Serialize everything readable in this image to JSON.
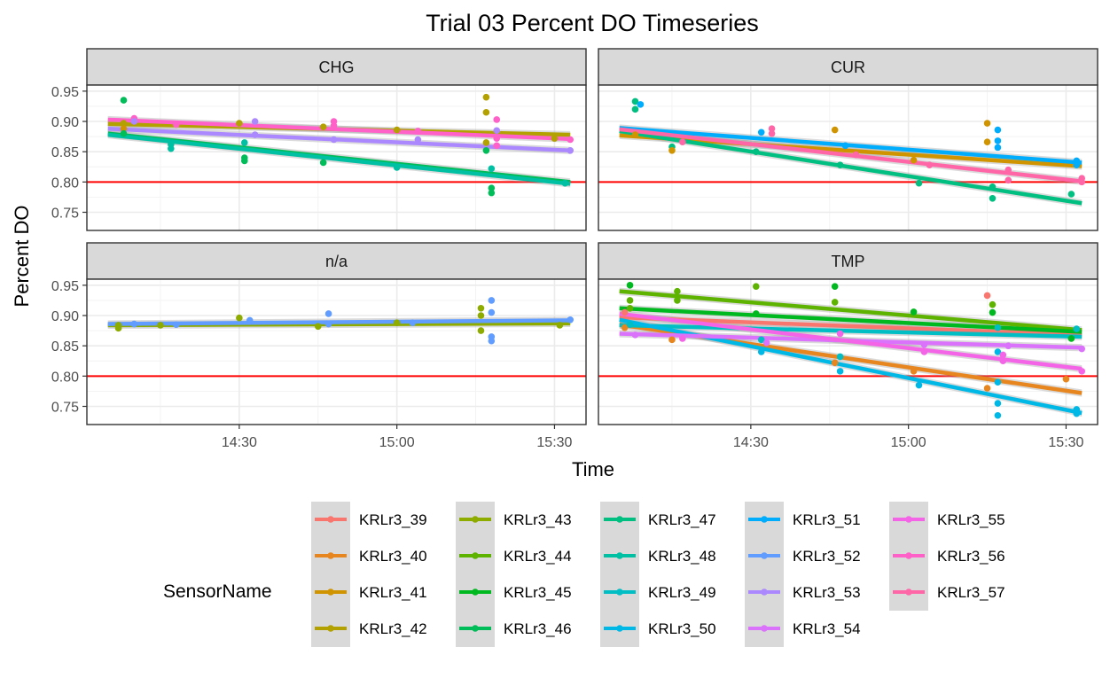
{
  "colors": {
    "reference_line": "#ff0000",
    "ribbon": "#999999",
    "strip_fill": "#d9d9d9"
  },
  "chart_data": {
    "type": "scatter",
    "title": "Trial 03 Percent DO Timeseries",
    "xlabel": "Time",
    "ylabel": "Percent DO",
    "x_ticks": [
      "14:30",
      "15:00",
      "15:30"
    ],
    "x_range": [
      "14:01",
      "15:36"
    ],
    "y_ticks": [
      "0.75",
      "0.80",
      "0.85",
      "0.90",
      "0.95"
    ],
    "ylim": [
      0.72,
      0.96
    ],
    "reference_line_y": 0.8,
    "grid": true,
    "legend_title": "SensorName",
    "legend_position": "bottom",
    "smoother": "linear fit with confidence ribbon",
    "series": [
      {
        "name": "KRLr3_39",
        "color": "#F8766D"
      },
      {
        "name": "KRLr3_40",
        "color": "#E7851E"
      },
      {
        "name": "KRLr3_41",
        "color": "#D09400"
      },
      {
        "name": "KRLr3_42",
        "color": "#B2A100"
      },
      {
        "name": "KRLr3_43",
        "color": "#8EAB00"
      },
      {
        "name": "KRLr3_44",
        "color": "#5EB300"
      },
      {
        "name": "KRLr3_45",
        "color": "#00B81F"
      },
      {
        "name": "KRLr3_46",
        "color": "#00BC59"
      },
      {
        "name": "KRLr3_47",
        "color": "#00BF80"
      },
      {
        "name": "KRLr3_48",
        "color": "#00C0A3"
      },
      {
        "name": "KRLr3_49",
        "color": "#00BEC4"
      },
      {
        "name": "KRLr3_50",
        "color": "#00B8E5"
      },
      {
        "name": "KRLr3_51",
        "color": "#00ACFC"
      },
      {
        "name": "KRLr3_52",
        "color": "#619CFF"
      },
      {
        "name": "KRLr3_53",
        "color": "#AC88FF"
      },
      {
        "name": "KRLr3_54",
        "color": "#DB72FB"
      },
      {
        "name": "KRLr3_55",
        "color": "#F365E6"
      },
      {
        "name": "KRLr3_56",
        "color": "#FF61C9"
      },
      {
        "name": "KRLr3_57",
        "color": "#FF66A8"
      }
    ],
    "panels": [
      {
        "name": "CHG",
        "fits": [
          {
            "series": "KRLr3_42",
            "start": 0.896,
            "end": 0.878
          },
          {
            "series": "KRLr3_46",
            "start": 0.88,
            "end": 0.8
          },
          {
            "series": "KRLr3_48",
            "start": 0.878,
            "end": 0.797
          },
          {
            "series": "KRLr3_53",
            "start": 0.888,
            "end": 0.852
          },
          {
            "series": "KRLr3_56",
            "start": 0.903,
            "end": 0.871
          }
        ],
        "points": [
          {
            "series": "KRLr3_46",
            "x": "14:08",
            "y": 0.935
          },
          {
            "series": "KRLr3_42",
            "x": "14:08",
            "y": 0.897
          },
          {
            "series": "KRLr3_41",
            "x": "14:08",
            "y": 0.888
          },
          {
            "series": "KRLr3_46",
            "x": "14:08",
            "y": 0.88
          },
          {
            "series": "KRLr3_56",
            "x": "14:10",
            "y": 0.905
          },
          {
            "series": "KRLr3_53",
            "x": "14:10",
            "y": 0.9
          },
          {
            "series": "KRLr3_48",
            "x": "14:17",
            "y": 0.862
          },
          {
            "series": "KRLr3_48",
            "x": "14:17",
            "y": 0.855
          },
          {
            "series": "KRLr3_56",
            "x": "14:18",
            "y": 0.895
          },
          {
            "series": "KRLr3_42",
            "x": "14:30",
            "y": 0.897
          },
          {
            "series": "KRLr3_46",
            "x": "14:31",
            "y": 0.84
          },
          {
            "series": "KRLr3_46",
            "x": "14:31",
            "y": 0.835
          },
          {
            "series": "KRLr3_48",
            "x": "14:31",
            "y": 0.865
          },
          {
            "series": "KRLr3_53",
            "x": "14:33",
            "y": 0.9
          },
          {
            "series": "KRLr3_53",
            "x": "14:33",
            "y": 0.878
          },
          {
            "series": "KRLr3_46",
            "x": "14:46",
            "y": 0.832
          },
          {
            "series": "KRLr3_42",
            "x": "14:46",
            "y": 0.891
          },
          {
            "series": "KRLr3_53",
            "x": "14:48",
            "y": 0.87
          },
          {
            "series": "KRLr3_56",
            "x": "14:48",
            "y": 0.9
          },
          {
            "series": "KRLr3_56",
            "x": "14:48",
            "y": 0.893
          },
          {
            "series": "KRLr3_48",
            "x": "15:00",
            "y": 0.824
          },
          {
            "series": "KRLr3_42",
            "x": "15:00",
            "y": 0.886
          },
          {
            "series": "KRLr3_56",
            "x": "15:04",
            "y": 0.884
          },
          {
            "series": "KRLr3_53",
            "x": "15:04",
            "y": 0.87
          },
          {
            "series": "KRLr3_42",
            "x": "15:17",
            "y": 0.94
          },
          {
            "series": "KRLr3_42",
            "x": "15:17",
            "y": 0.915
          },
          {
            "series": "KRLr3_42",
            "x": "15:17",
            "y": 0.865
          },
          {
            "series": "KRLr3_46",
            "x": "15:17",
            "y": 0.852
          },
          {
            "series": "KRLr3_48",
            "x": "15:18",
            "y": 0.822
          },
          {
            "series": "KRLr3_46",
            "x": "15:18",
            "y": 0.79
          },
          {
            "series": "KRLr3_46",
            "x": "15:18",
            "y": 0.782
          },
          {
            "series": "KRLr3_53",
            "x": "15:19",
            "y": 0.885
          },
          {
            "series": "KRLr3_56",
            "x": "15:19",
            "y": 0.903
          },
          {
            "series": "KRLr3_56",
            "x": "15:19",
            "y": 0.872
          },
          {
            "series": "KRLr3_56",
            "x": "15:19",
            "y": 0.86
          },
          {
            "series": "KRLr3_48",
            "x": "15:32",
            "y": 0.798
          },
          {
            "series": "KRLr3_42",
            "x": "15:30",
            "y": 0.872
          },
          {
            "series": "KRLr3_56",
            "x": "15:33",
            "y": 0.87
          },
          {
            "series": "KRLr3_53",
            "x": "15:33",
            "y": 0.852
          }
        ]
      },
      {
        "name": "CUR",
        "fits": [
          {
            "series": "KRLr3_41",
            "start": 0.877,
            "end": 0.826
          },
          {
            "series": "KRLr3_47",
            "start": 0.884,
            "end": 0.765
          },
          {
            "series": "KRLr3_51",
            "start": 0.889,
            "end": 0.832
          },
          {
            "series": "KRLr3_57",
            "start": 0.887,
            "end": 0.801
          }
        ],
        "points": [
          {
            "series": "KRLr3_47",
            "x": "14:08",
            "y": 0.933
          },
          {
            "series": "KRLr3_47",
            "x": "14:08",
            "y": 0.92
          },
          {
            "series": "KRLr3_51",
            "x": "14:09",
            "y": 0.928
          },
          {
            "series": "KRLr3_41",
            "x": "14:08",
            "y": 0.878
          },
          {
            "series": "KRLr3_47",
            "x": "14:15",
            "y": 0.858
          },
          {
            "series": "KRLr3_41",
            "x": "14:15",
            "y": 0.852
          },
          {
            "series": "KRLr3_57",
            "x": "14:17",
            "y": 0.866
          },
          {
            "series": "KRLr3_51",
            "x": "14:32",
            "y": 0.882
          },
          {
            "series": "KRLr3_57",
            "x": "14:34",
            "y": 0.888
          },
          {
            "series": "KRLr3_57",
            "x": "14:34",
            "y": 0.88
          },
          {
            "series": "KRLr3_47",
            "x": "14:31",
            "y": 0.85
          },
          {
            "series": "KRLr3_41",
            "x": "14:46",
            "y": 0.886
          },
          {
            "series": "KRLr3_47",
            "x": "14:47",
            "y": 0.828
          },
          {
            "series": "KRLr3_51",
            "x": "14:48",
            "y": 0.86
          },
          {
            "series": "KRLr3_57",
            "x": "14:50",
            "y": 0.845
          },
          {
            "series": "KRLr3_47",
            "x": "15:02",
            "y": 0.798
          },
          {
            "series": "KRLr3_41",
            "x": "15:01",
            "y": 0.836
          },
          {
            "series": "KRLr3_57",
            "x": "15:04",
            "y": 0.828
          },
          {
            "series": "KRLr3_41",
            "x": "15:15",
            "y": 0.897
          },
          {
            "series": "KRLr3_41",
            "x": "15:15",
            "y": 0.866
          },
          {
            "series": "KRLr3_51",
            "x": "15:17",
            "y": 0.886
          },
          {
            "series": "KRLr3_51",
            "x": "15:17",
            "y": 0.868
          },
          {
            "series": "KRLr3_51",
            "x": "15:17",
            "y": 0.857
          },
          {
            "series": "KRLr3_47",
            "x": "15:16",
            "y": 0.792
          },
          {
            "series": "KRLr3_47",
            "x": "15:16",
            "y": 0.773
          },
          {
            "series": "KRLr3_57",
            "x": "15:19",
            "y": 0.82
          },
          {
            "series": "KRLr3_57",
            "x": "15:19",
            "y": 0.803
          },
          {
            "series": "KRLr3_51",
            "x": "15:32",
            "y": 0.835
          },
          {
            "series": "KRLr3_51",
            "x": "15:32",
            "y": 0.828
          },
          {
            "series": "KRLr3_47",
            "x": "15:31",
            "y": 0.78
          },
          {
            "series": "KRLr3_57",
            "x": "15:33",
            "y": 0.806
          },
          {
            "series": "KRLr3_57",
            "x": "15:33",
            "y": 0.8
          }
        ]
      },
      {
        "name": "n/a",
        "fits": [
          {
            "series": "KRLr3_43",
            "start": 0.884,
            "end": 0.887
          },
          {
            "series": "KRLr3_52",
            "start": 0.886,
            "end": 0.892
          }
        ],
        "points": [
          {
            "series": "KRLr3_43",
            "x": "14:07",
            "y": 0.884
          },
          {
            "series": "KRLr3_43",
            "x": "14:07",
            "y": 0.879
          },
          {
            "series": "KRLr3_52",
            "x": "14:10",
            "y": 0.886
          },
          {
            "series": "KRLr3_43",
            "x": "14:15",
            "y": 0.884
          },
          {
            "series": "KRLr3_52",
            "x": "14:18",
            "y": 0.885
          },
          {
            "series": "KRLr3_43",
            "x": "14:30",
            "y": 0.896
          },
          {
            "series": "KRLr3_52",
            "x": "14:32",
            "y": 0.892
          },
          {
            "series": "KRLr3_43",
            "x": "14:45",
            "y": 0.882
          },
          {
            "series": "KRLr3_52",
            "x": "14:47",
            "y": 0.903
          },
          {
            "series": "KRLr3_52",
            "x": "14:47",
            "y": 0.886
          },
          {
            "series": "KRLr3_43",
            "x": "15:00",
            "y": 0.888
          },
          {
            "series": "KRLr3_52",
            "x": "15:03",
            "y": 0.888
          },
          {
            "series": "KRLr3_43",
            "x": "15:16",
            "y": 0.912
          },
          {
            "series": "KRLr3_43",
            "x": "15:16",
            "y": 0.9
          },
          {
            "series": "KRLr3_43",
            "x": "15:16",
            "y": 0.875
          },
          {
            "series": "KRLr3_52",
            "x": "15:18",
            "y": 0.925
          },
          {
            "series": "KRLr3_52",
            "x": "15:18",
            "y": 0.905
          },
          {
            "series": "KRLr3_52",
            "x": "15:18",
            "y": 0.865
          },
          {
            "series": "KRLr3_52",
            "x": "15:18",
            "y": 0.858
          },
          {
            "series": "KRLr3_43",
            "x": "15:31",
            "y": 0.884
          },
          {
            "series": "KRLr3_52",
            "x": "15:33",
            "y": 0.893
          }
        ]
      },
      {
        "name": "TMP",
        "fits": [
          {
            "series": "KRLr3_39",
            "start": 0.897,
            "end": 0.868
          },
          {
            "series": "KRLr3_40",
            "start": 0.885,
            "end": 0.772
          },
          {
            "series": "KRLr3_44",
            "start": 0.94,
            "end": 0.876
          },
          {
            "series": "KRLr3_45",
            "start": 0.912,
            "end": 0.873
          },
          {
            "series": "KRLr3_49",
            "start": 0.884,
            "end": 0.865
          },
          {
            "series": "KRLr3_50",
            "start": 0.893,
            "end": 0.739
          },
          {
            "series": "KRLr3_54",
            "start": 0.87,
            "end": 0.847
          },
          {
            "series": "KRLr3_55",
            "start": 0.903,
            "end": 0.812
          }
        ],
        "points": [
          {
            "series": "KRLr3_45",
            "x": "14:07",
            "y": 0.95
          },
          {
            "series": "KRLr3_44",
            "x": "14:07",
            "y": 0.925
          },
          {
            "series": "KRLr3_44",
            "x": "14:07",
            "y": 0.912
          },
          {
            "series": "KRLr3_39",
            "x": "14:06",
            "y": 0.905
          },
          {
            "series": "KRLr3_40",
            "x": "14:06",
            "y": 0.88
          },
          {
            "series": "KRLr3_49",
            "x": "14:07",
            "y": 0.885
          },
          {
            "series": "KRLr3_54",
            "x": "14:08",
            "y": 0.868
          },
          {
            "series": "KRLr3_44",
            "x": "14:16",
            "y": 0.94
          },
          {
            "series": "KRLr3_44",
            "x": "14:16",
            "y": 0.925
          },
          {
            "series": "KRLr3_40",
            "x": "14:15",
            "y": 0.86
          },
          {
            "series": "KRLr3_55",
            "x": "14:17",
            "y": 0.862
          },
          {
            "series": "KRLr3_44",
            "x": "14:31",
            "y": 0.948
          },
          {
            "series": "KRLr3_45",
            "x": "14:31",
            "y": 0.903
          },
          {
            "series": "KRLr3_49",
            "x": "14:32",
            "y": 0.86
          },
          {
            "series": "KRLr3_50",
            "x": "14:32",
            "y": 0.84
          },
          {
            "series": "KRLr3_54",
            "x": "14:33",
            "y": 0.855
          },
          {
            "series": "KRLr3_45",
            "x": "14:46",
            "y": 0.948
          },
          {
            "series": "KRLr3_44",
            "x": "14:46",
            "y": 0.922
          },
          {
            "series": "KRLr3_40",
            "x": "14:46",
            "y": 0.822
          },
          {
            "series": "KRLr3_50",
            "x": "14:47",
            "y": 0.808
          },
          {
            "series": "KRLr3_49",
            "x": "14:47",
            "y": 0.832
          },
          {
            "series": "KRLr3_55",
            "x": "14:47",
            "y": 0.87
          },
          {
            "series": "KRLr3_45",
            "x": "15:01",
            "y": 0.906
          },
          {
            "series": "KRLr3_40",
            "x": "15:01",
            "y": 0.808
          },
          {
            "series": "KRLr3_50",
            "x": "15:02",
            "y": 0.785
          },
          {
            "series": "KRLr3_54",
            "x": "15:03",
            "y": 0.852
          },
          {
            "series": "KRLr3_55",
            "x": "15:03",
            "y": 0.84
          },
          {
            "series": "KRLr3_39",
            "x": "15:15",
            "y": 0.933
          },
          {
            "series": "KRLr3_44",
            "x": "15:16",
            "y": 0.918
          },
          {
            "series": "KRLr3_45",
            "x": "15:16",
            "y": 0.905
          },
          {
            "series": "KRLr3_40",
            "x": "15:15",
            "y": 0.78
          },
          {
            "series": "KRLr3_49",
            "x": "15:17",
            "y": 0.88
          },
          {
            "series": "KRLr3_50",
            "x": "15:17",
            "y": 0.84
          },
          {
            "series": "KRLr3_50",
            "x": "15:17",
            "y": 0.79
          },
          {
            "series": "KRLr3_50",
            "x": "15:17",
            "y": 0.755
          },
          {
            "series": "KRLr3_50",
            "x": "15:17",
            "y": 0.735
          },
          {
            "series": "KRLr3_55",
            "x": "15:18",
            "y": 0.835
          },
          {
            "series": "KRLr3_55",
            "x": "15:18",
            "y": 0.825
          },
          {
            "series": "KRLr3_54",
            "x": "15:19",
            "y": 0.85
          },
          {
            "series": "KRLr3_40",
            "x": "15:30",
            "y": 0.795
          },
          {
            "series": "KRLr3_45",
            "x": "15:31",
            "y": 0.862
          },
          {
            "series": "KRLr3_49",
            "x": "15:32",
            "y": 0.878
          },
          {
            "series": "KRLr3_50",
            "x": "15:32",
            "y": 0.745
          },
          {
            "series": "KRLr3_50",
            "x": "15:32",
            "y": 0.738
          },
          {
            "series": "KRLr3_54",
            "x": "15:33",
            "y": 0.845
          },
          {
            "series": "KRLr3_55",
            "x": "15:33",
            "y": 0.808
          }
        ]
      }
    ]
  }
}
